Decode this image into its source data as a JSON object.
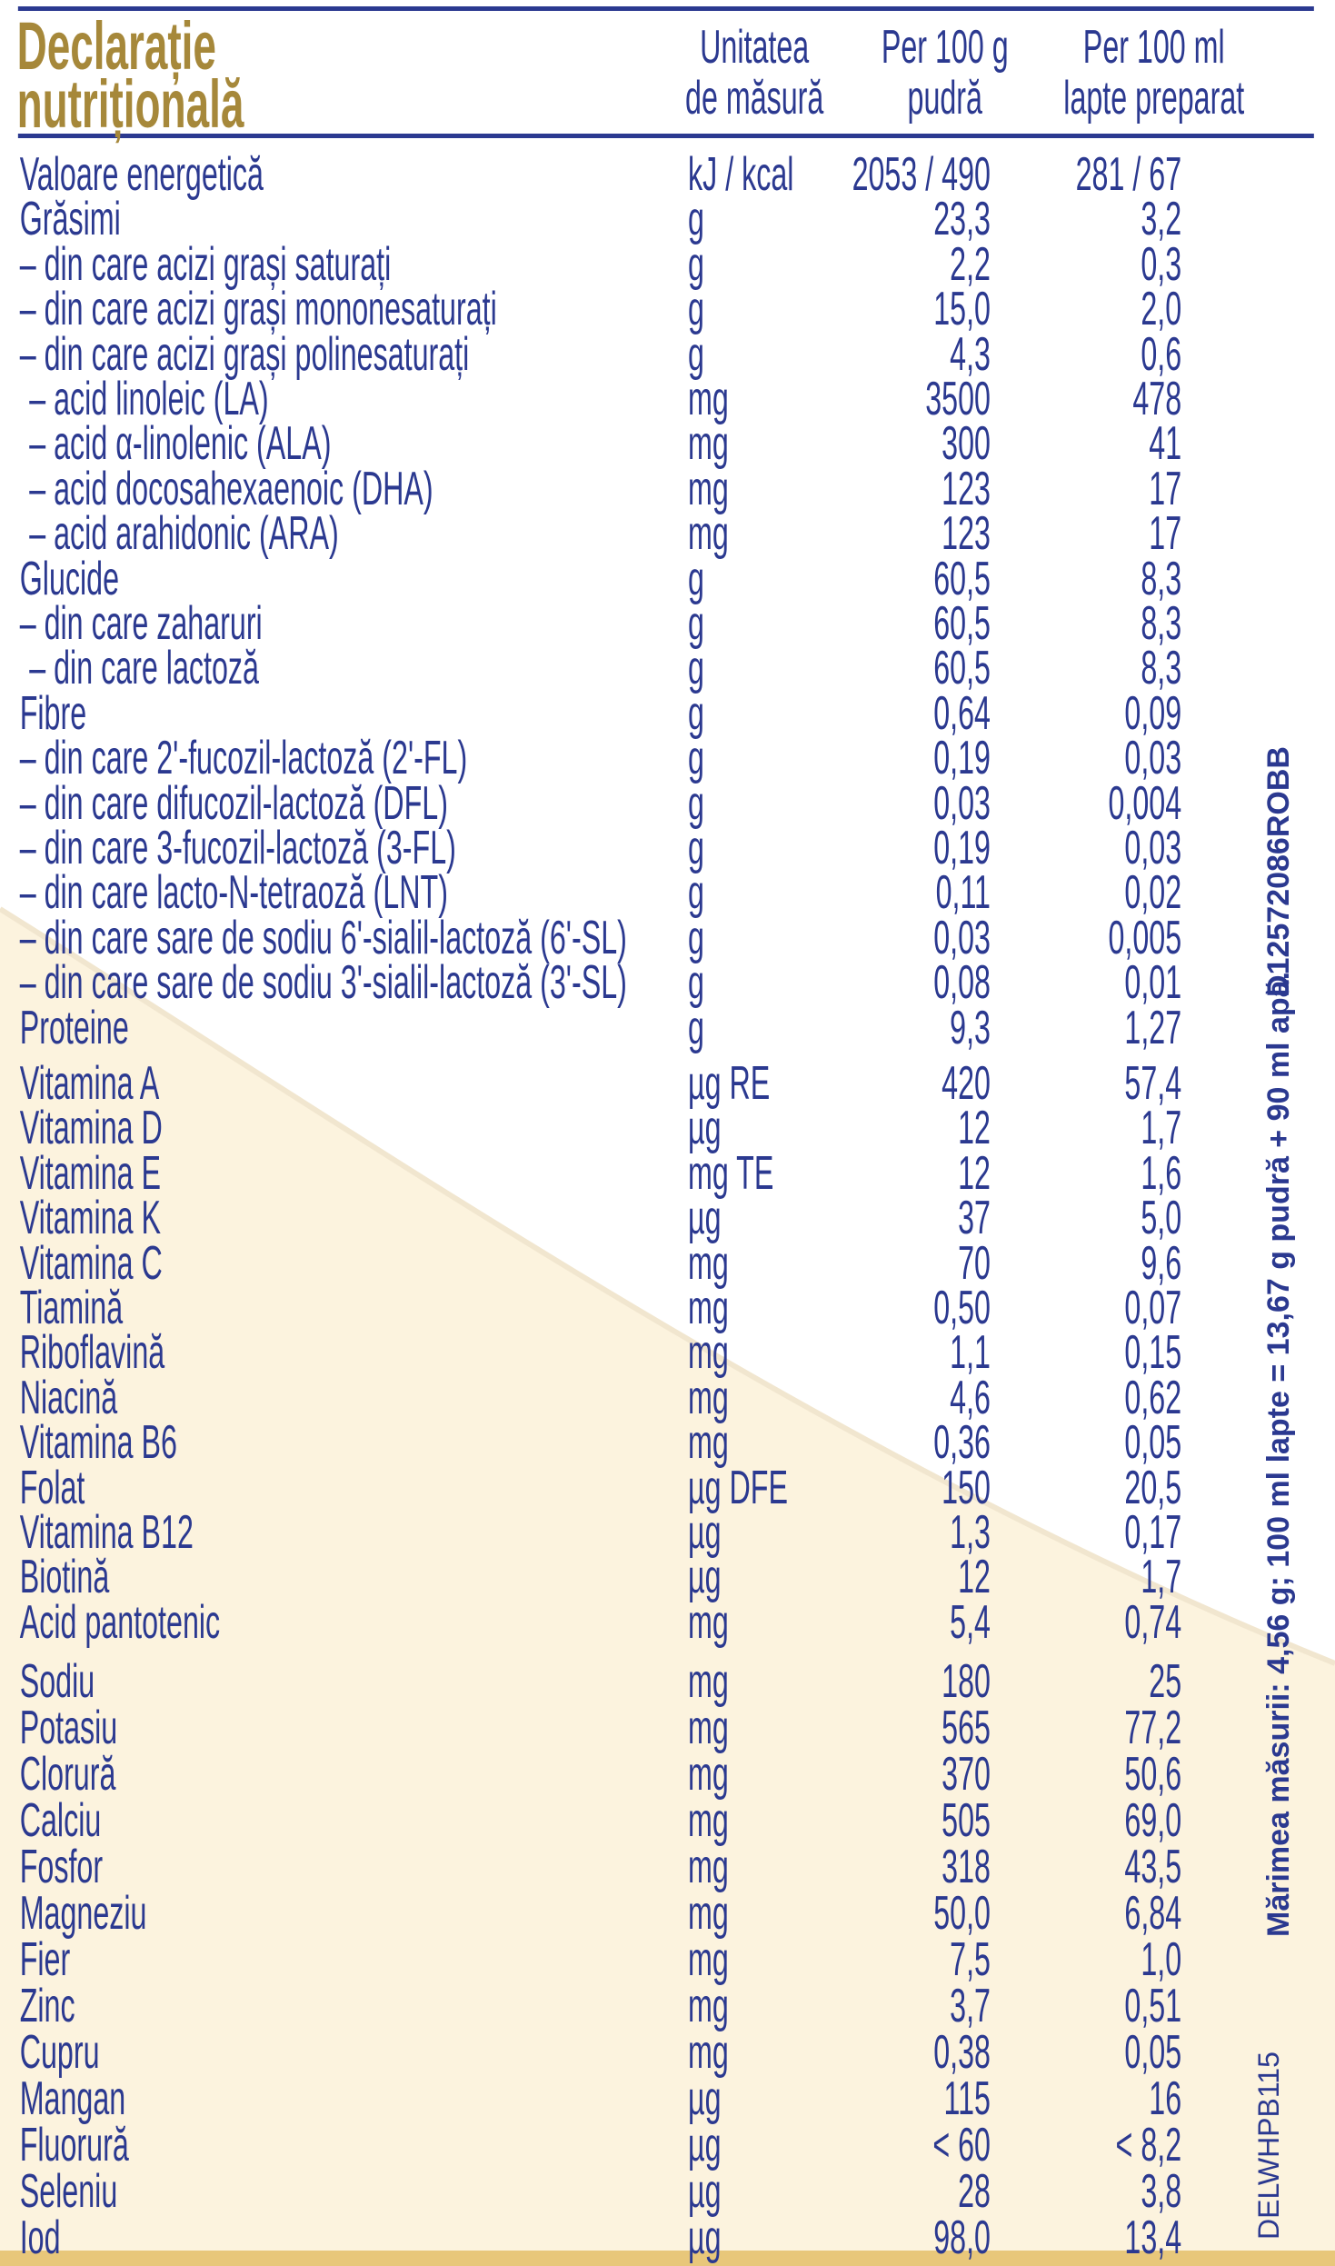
{
  "title": {
    "line1": "Declarație",
    "line2": "nutrițională"
  },
  "headers": {
    "unit": [
      "Unitatea",
      "de măsură"
    ],
    "per100g": [
      "Per 100 g",
      "pudră"
    ],
    "per100ml": [
      "Per 100 ml",
      "lapte preparat"
    ]
  },
  "groups": [
    {
      "rows": [
        [
          "Valoare energetică",
          "kJ / kcal",
          "2053 / 490",
          "281 / 67"
        ],
        [
          "Grăsimi",
          "g",
          "23,3",
          "3,2"
        ],
        [
          "– din care acizi grași saturați",
          "g",
          "2,2",
          "0,3"
        ],
        [
          "– din care acizi grași mononesaturați",
          "g",
          "15,0",
          "2,0"
        ],
        [
          "– din care acizi grași polinesaturați",
          "g",
          "4,3",
          "0,6"
        ],
        [
          " – acid linoleic (LA)",
          "mg",
          "3500",
          "478"
        ],
        [
          " – acid α-linolenic (ALA)",
          "mg",
          "300",
          "41"
        ],
        [
          " – acid docosahexaenoic (DHA)",
          "mg",
          "123",
          "17"
        ],
        [
          " – acid arahidonic (ARA)",
          "mg",
          "123",
          "17"
        ],
        [
          "Glucide",
          "g",
          "60,5",
          "8,3"
        ],
        [
          "– din care zaharuri",
          "g",
          "60,5",
          "8,3"
        ],
        [
          " – din care lactoză",
          "g",
          "60,5",
          "8,3"
        ],
        [
          "Fibre",
          "g",
          "0,64",
          "0,09"
        ],
        [
          "– din care 2'-fucozil-lactoză (2'-FL)",
          "g",
          "0,19",
          "0,03"
        ],
        [
          "– din care difucozil-lactoză (DFL)",
          "g",
          "0,03",
          "0,004"
        ],
        [
          "– din care 3-fucozil-lactoză (3-FL)",
          "g",
          "0,19",
          "0,03"
        ],
        [
          "– din care lacto-N-tetraoză (LNT)",
          "g",
          "0,11",
          "0,02"
        ],
        [
          "– din care sare de sodiu 6'-sialil-lactoză (6'-SL)",
          "g",
          "0,03",
          "0,005"
        ],
        [
          "– din care sare de sodiu 3'-sialil-lactoză (3'-SL)",
          "g",
          "0,08",
          "0,01"
        ],
        [
          "Proteine",
          "g",
          "9,3",
          "1,27"
        ]
      ]
    },
    {
      "rows": [
        [
          "Vitamina A",
          "µg RE",
          "420",
          "57,4"
        ],
        [
          "Vitamina D",
          "µg",
          "12",
          "1,7"
        ],
        [
          "Vitamina E",
          "mg TE",
          "12",
          "1,6"
        ],
        [
          "Vitamina K",
          "µg",
          "37",
          "5,0"
        ],
        [
          "Vitamina C",
          "mg",
          "70",
          "9,6"
        ],
        [
          "Tiamină",
          "mg",
          "0,50",
          "0,07"
        ],
        [
          "Riboflavină",
          "mg",
          "1,1",
          "0,15"
        ],
        [
          "Niacină",
          "mg",
          "4,6",
          "0,62"
        ],
        [
          "Vitamina B6",
          "mg",
          "0,36",
          "0,05"
        ],
        [
          "Folat",
          "µg DFE",
          "150",
          "20,5"
        ],
        [
          "Vitamina B12",
          "µg",
          "1,3",
          "0,17"
        ],
        [
          "Biotină",
          "µg",
          "12",
          "1,7"
        ],
        [
          "Acid pantotenic",
          "mg",
          "5,4",
          "0,74"
        ]
      ]
    },
    {
      "rows": [
        [
          "Sodiu",
          "mg",
          "180",
          "25"
        ],
        [
          "Potasiu",
          "mg",
          "565",
          "77,2"
        ],
        [
          "Clorură",
          "mg",
          "370",
          "50,6"
        ],
        [
          "Calciu",
          "mg",
          "505",
          "69,0"
        ],
        [
          "Fosfor",
          "mg",
          "318",
          "43,5"
        ],
        [
          "Magneziu",
          "mg",
          "50,0",
          "6,84"
        ],
        [
          "Fier",
          "mg",
          "7,5",
          "1,0"
        ],
        [
          "Zinc",
          "mg",
          "3,7",
          "0,51"
        ],
        [
          "Cupru",
          "mg",
          "0,38",
          "0,05"
        ],
        [
          "Mangan",
          "µg",
          "115",
          "16"
        ],
        [
          "Fluorură",
          "µg",
          "< 60",
          "< 8,2"
        ],
        [
          "Seleniu",
          "µg",
          "28",
          "3,8"
        ],
        [
          "Iod",
          "µg",
          "98,0",
          "13,4"
        ]
      ]
    }
  ],
  "side": {
    "code": "D12572086ROBB",
    "serving": "Mărimea măsurii: 4,56 g; 100 ml lapte = 13,67 g pudră + 90 ml apă.",
    "code2": "DELWHPB115"
  },
  "colors": {
    "text": "#2b3990",
    "title": "#a6883a",
    "background_cream": "#fbf1da"
  }
}
